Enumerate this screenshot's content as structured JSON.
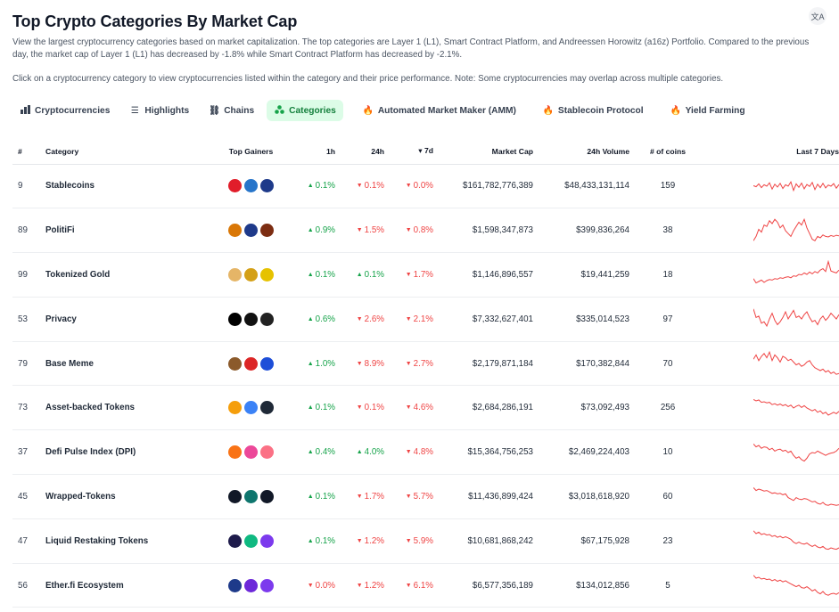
{
  "header": {
    "title": "Top Crypto Categories By Market Cap",
    "description": "View the largest cryptocurrency categories based on market capitalization. The top categories are Layer 1 (L1), Smart Contract Platform, and Andreessen Horowitz (a16z) Portfolio. Compared to the previous day, the market cap of Layer 1 (L1) has decreased by -1.8% while Smart Contract Platform has decreased by -2.1%.",
    "note": "Click on a cryptocurrency category to view cryptocurrencies listed within the category and their price performance. Note: Some cryptocurrencies may overlap across multiple categories.",
    "translate_icon": "translate-icon"
  },
  "tabs": [
    {
      "label": "Cryptocurrencies",
      "icon": "bar-chart-icon",
      "active": false
    },
    {
      "label": "Highlights",
      "icon": "list-icon",
      "active": false
    },
    {
      "label": "Chains",
      "icon": "link-icon",
      "active": false
    },
    {
      "label": "Categories",
      "icon": "categories-icon",
      "active": true
    },
    {
      "label": "Automated Market Maker (AMM)",
      "icon": "flame-icon",
      "active": false
    },
    {
      "label": "Stablecoin Protocol",
      "icon": "flame-icon",
      "active": false
    },
    {
      "label": "Yield Farming",
      "icon": "flame-icon",
      "active": false
    }
  ],
  "columns": {
    "rank": "#",
    "category": "Category",
    "top_gainers": "Top Gainers",
    "h1": "1h",
    "h24": "24h",
    "d7": "7d",
    "d7_sort": "▾",
    "market_cap": "Market Cap",
    "volume": "24h Volume",
    "coins": "# of coins",
    "spark": "Last 7 Days"
  },
  "rows": [
    {
      "rank": "9",
      "name": "Stablecoins",
      "h1": "0.1%",
      "h1_dir": "up",
      "h24": "0.1%",
      "h24_dir": "down",
      "d7": "0.0%",
      "d7_dir": "down",
      "market_cap": "$161,782,776,389",
      "volume": "$48,433,131,114",
      "coins": "159",
      "gainers": [
        {
          "icon": "swiss-cross-icon",
          "color": "#e11d2a"
        },
        {
          "icon": "usdc-icon",
          "color": "#2775ca"
        },
        {
          "icon": "lock-coin-icon",
          "color": "#1e3a8a"
        }
      ],
      "spark": [
        0.52,
        0.48,
        0.58,
        0.45,
        0.55,
        0.5,
        0.62,
        0.4,
        0.57,
        0.47,
        0.6,
        0.42,
        0.55,
        0.5,
        0.65,
        0.35,
        0.58,
        0.46,
        0.61,
        0.41,
        0.56,
        0.49,
        0.63,
        0.38,
        0.57,
        0.45,
        0.6,
        0.44,
        0.54,
        0.5,
        0.59,
        0.43,
        0.56
      ]
    },
    {
      "rank": "89",
      "name": "PolitiFi",
      "h1": "0.9%",
      "h1_dir": "up",
      "h24": "1.5%",
      "h24_dir": "down",
      "d7": "0.8%",
      "d7_dir": "down",
      "market_cap": "$1,598,347,873",
      "volume": "$399,836,264",
      "coins": "38",
      "gainers": [
        {
          "icon": "politifi-character-icon",
          "color": "#d97706"
        },
        {
          "icon": "trump-coin-icon",
          "color": "#1e3a8a"
        },
        {
          "icon": "flag-coin-icon",
          "color": "#7c2d12"
        }
      ],
      "spark": [
        0.15,
        0.3,
        0.55,
        0.45,
        0.7,
        0.65,
        0.85,
        0.75,
        0.9,
        0.8,
        0.6,
        0.7,
        0.5,
        0.4,
        0.3,
        0.5,
        0.65,
        0.8,
        0.7,
        0.9,
        0.6,
        0.4,
        0.2,
        0.15,
        0.3,
        0.25,
        0.35,
        0.3,
        0.28,
        0.33,
        0.3,
        0.34,
        0.32
      ]
    },
    {
      "rank": "99",
      "name": "Tokenized Gold",
      "h1": "0.1%",
      "h1_dir": "up",
      "h24": "0.1%",
      "h24_dir": "up",
      "d7": "1.7%",
      "d7_dir": "down",
      "market_cap": "$1,146,896,557",
      "volume": "$19,441,259",
      "coins": "18",
      "gainers": [
        {
          "icon": "gold-bars-icon",
          "color": "#e5b567"
        },
        {
          "icon": "gold-gem-icon",
          "color": "#d4a017"
        },
        {
          "icon": "gold-ring-icon",
          "color": "#e6c200"
        }
      ],
      "spark": [
        0.35,
        0.2,
        0.25,
        0.3,
        0.22,
        0.28,
        0.32,
        0.3,
        0.35,
        0.33,
        0.38,
        0.36,
        0.4,
        0.42,
        0.38,
        0.45,
        0.43,
        0.5,
        0.48,
        0.55,
        0.5,
        0.58,
        0.52,
        0.6,
        0.55,
        0.65,
        0.7,
        0.6,
        0.95,
        0.62,
        0.58,
        0.55,
        0.65
      ]
    },
    {
      "rank": "53",
      "name": "Privacy",
      "h1": "0.6%",
      "h1_dir": "up",
      "h24": "2.6%",
      "h24_dir": "down",
      "d7": "2.1%",
      "d7_dir": "down",
      "market_cap": "$7,332,627,401",
      "volume": "$335,014,523",
      "coins": "97",
      "gainers": [
        {
          "icon": "lambda-icon",
          "color": "#000000"
        },
        {
          "icon": "half-moon-coin-icon",
          "color": "#111111"
        },
        {
          "icon": "privacy-coin-icon",
          "color": "#222222"
        }
      ],
      "spark": [
        0.85,
        0.55,
        0.6,
        0.35,
        0.4,
        0.25,
        0.5,
        0.7,
        0.45,
        0.3,
        0.4,
        0.55,
        0.75,
        0.5,
        0.65,
        0.8,
        0.55,
        0.6,
        0.5,
        0.65,
        0.75,
        0.55,
        0.4,
        0.45,
        0.3,
        0.5,
        0.6,
        0.45,
        0.55,
        0.7,
        0.6,
        0.5,
        0.65
      ]
    },
    {
      "rank": "79",
      "name": "Base Meme",
      "h1": "1.0%",
      "h1_dir": "up",
      "h24": "8.9%",
      "h24_dir": "down",
      "d7": "2.7%",
      "d7_dir": "down",
      "market_cap": "$2,179,871,184",
      "volume": "$170,382,844",
      "coins": "70",
      "gainers": [
        {
          "icon": "dog-coin-icon",
          "color": "#8b5a2b"
        },
        {
          "icon": "red-box-icon",
          "color": "#dc2626"
        },
        {
          "icon": "blue-blob-icon",
          "color": "#1d4ed8"
        }
      ],
      "spark": [
        0.65,
        0.8,
        0.6,
        0.75,
        0.85,
        0.7,
        0.9,
        0.6,
        0.8,
        0.7,
        0.55,
        0.75,
        0.7,
        0.6,
        0.65,
        0.55,
        0.45,
        0.5,
        0.4,
        0.45,
        0.55,
        0.6,
        0.45,
        0.35,
        0.3,
        0.25,
        0.3,
        0.2,
        0.25,
        0.15,
        0.2,
        0.12,
        0.15
      ]
    },
    {
      "rank": "73",
      "name": "Asset-backed Tokens",
      "h1": "0.1%",
      "h1_dir": "up",
      "h24": "0.1%",
      "h24_dir": "down",
      "d7": "4.6%",
      "d7_dir": "down",
      "market_cap": "$2,684,286,191",
      "volume": "$73,092,493",
      "coins": "256",
      "gainers": [
        {
          "icon": "orange-coin-icon",
          "color": "#f59e0b"
        },
        {
          "icon": "blue-diamond-icon",
          "color": "#3b82f6"
        },
        {
          "icon": "spiral-coin-icon",
          "color": "#1f2937"
        }
      ],
      "spark": [
        0.8,
        0.75,
        0.78,
        0.7,
        0.72,
        0.68,
        0.7,
        0.62,
        0.65,
        0.6,
        0.64,
        0.58,
        0.62,
        0.55,
        0.6,
        0.5,
        0.56,
        0.6,
        0.52,
        0.58,
        0.5,
        0.45,
        0.4,
        0.45,
        0.35,
        0.4,
        0.3,
        0.35,
        0.25,
        0.3,
        0.35,
        0.3,
        0.38
      ]
    },
    {
      "rank": "37",
      "name": "Defi Pulse Index (DPI)",
      "h1": "0.4%",
      "h1_dir": "up",
      "h24": "4.0%",
      "h24_dir": "up",
      "d7": "4.8%",
      "d7_dir": "down",
      "market_cap": "$15,364,756,253",
      "volume": "$2,469,224,403",
      "coins": "10",
      "gainers": [
        {
          "icon": "orange-compass-icon",
          "color": "#f97316"
        },
        {
          "icon": "pink-ghost-icon",
          "color": "#ec4899"
        },
        {
          "icon": "mountain-icon",
          "color": "#fb7185"
        }
      ],
      "spark": [
        0.8,
        0.7,
        0.75,
        0.65,
        0.7,
        0.68,
        0.6,
        0.65,
        0.55,
        0.6,
        0.62,
        0.55,
        0.58,
        0.5,
        0.55,
        0.4,
        0.3,
        0.35,
        0.25,
        0.2,
        0.3,
        0.45,
        0.5,
        0.48,
        0.55,
        0.5,
        0.45,
        0.4,
        0.45,
        0.48,
        0.5,
        0.55,
        0.65
      ]
    },
    {
      "rank": "45",
      "name": "Wrapped-Tokens",
      "h1": "0.1%",
      "h1_dir": "up",
      "h24": "1.7%",
      "h24_dir": "down",
      "d7": "5.7%",
      "d7_dir": "down",
      "market_cap": "$11,436,899,424",
      "volume": "$3,018,618,920",
      "coins": "60",
      "gainers": [
        {
          "icon": "rings-icon",
          "color": "#111827"
        },
        {
          "icon": "green-flower-icon",
          "color": "#0f766e"
        },
        {
          "icon": "triangle-icon",
          "color": "#111827"
        }
      ],
      "spark": [
        0.8,
        0.7,
        0.75,
        0.72,
        0.68,
        0.7,
        0.65,
        0.6,
        0.62,
        0.58,
        0.6,
        0.55,
        0.58,
        0.45,
        0.4,
        0.35,
        0.45,
        0.4,
        0.38,
        0.42,
        0.4,
        0.35,
        0.3,
        0.32,
        0.25,
        0.22,
        0.28,
        0.2,
        0.18,
        0.22,
        0.2,
        0.18,
        0.2
      ]
    },
    {
      "rank": "47",
      "name": "Liquid Restaking Tokens",
      "h1": "0.1%",
      "h1_dir": "up",
      "h24": "1.2%",
      "h24_dir": "down",
      "d7": "5.9%",
      "d7_dir": "down",
      "market_cap": "$10,681,868,242",
      "volume": "$67,175,928",
      "coins": "23",
      "gainers": [
        {
          "icon": "eth-orange-icon",
          "color": "#1e1b4b"
        },
        {
          "icon": "green-arrows-icon",
          "color": "#10b981"
        },
        {
          "icon": "purple-eth-icon",
          "color": "#7c3aed"
        }
      ],
      "spark": [
        0.85,
        0.75,
        0.8,
        0.72,
        0.75,
        0.7,
        0.72,
        0.65,
        0.68,
        0.62,
        0.66,
        0.6,
        0.64,
        0.6,
        0.55,
        0.45,
        0.4,
        0.45,
        0.4,
        0.38,
        0.42,
        0.35,
        0.3,
        0.35,
        0.28,
        0.25,
        0.3,
        0.22,
        0.2,
        0.25,
        0.22,
        0.2,
        0.25
      ]
    },
    {
      "rank": "56",
      "name": "Ether.fi Ecosystem",
      "h1": "0.0%",
      "h1_dir": "down",
      "h24": "1.2%",
      "h24_dir": "down",
      "d7": "6.1%",
      "d7_dir": "down",
      "market_cap": "$6,577,356,189",
      "volume": "$134,012,856",
      "coins": "5",
      "gainers": [
        {
          "icon": "pixel-square-icon",
          "color": "#1e3a8a"
        },
        {
          "icon": "purple-coin-icon",
          "color": "#6d28d9"
        },
        {
          "icon": "violet-coin-icon",
          "color": "#7c3aed"
        }
      ],
      "spark": [
        0.85,
        0.75,
        0.78,
        0.72,
        0.74,
        0.7,
        0.72,
        0.66,
        0.7,
        0.64,
        0.68,
        0.62,
        0.66,
        0.6,
        0.55,
        0.5,
        0.45,
        0.5,
        0.42,
        0.4,
        0.45,
        0.38,
        0.3,
        0.35,
        0.25,
        0.2,
        0.28,
        0.18,
        0.15,
        0.2,
        0.22,
        0.18,
        0.24
      ]
    }
  ],
  "colors": {
    "up": "#16a34a",
    "down": "#ef4444",
    "spark": "#ef4444",
    "active_tab_bg": "#dcfce7",
    "active_tab_text": "#15803d"
  }
}
